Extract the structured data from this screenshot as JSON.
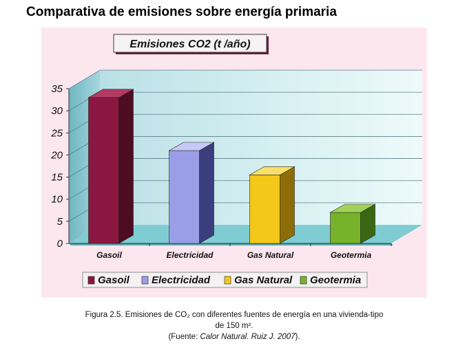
{
  "page_title": "Comparativa de emisiones sobre energía primaria",
  "chart_data": {
    "type": "bar",
    "title": "Emisiones CO2 (t /año)",
    "categories": [
      "Gasoil",
      "Electricidad",
      "Gas Natural",
      "Geotermia"
    ],
    "values": [
      33,
      21,
      15.5,
      7
    ],
    "ylim": [
      0,
      35
    ],
    "yticks": [
      0,
      5,
      10,
      15,
      20,
      25,
      30,
      35
    ],
    "grid": true,
    "legend": {
      "placement": "bottom",
      "entries": [
        "Gasoil",
        "Electricidad",
        "Gas Natural",
        "Geotermia"
      ]
    },
    "colors": [
      "#8b1740",
      "#9a9ee6",
      "#f3c81a",
      "#76b22a"
    ],
    "colors_dark": [
      "#4d0c22",
      "#3b3e7c",
      "#8d6d07",
      "#3c6712"
    ],
    "colors_light": [
      "#b43a64",
      "#c6c9f5",
      "#f9e06a",
      "#a3d25a"
    ]
  },
  "caption": {
    "line1": "Figura 2.5. Emisiones de CO₂ con diferentes fuentes de energía en una vivienda-tipo",
    "line2": "de 150 m².",
    "line3_prefix": "(Fuente: ",
    "line3_source": "Calor Natural. Ruiz J. 2007",
    "line3_suffix": ")."
  }
}
